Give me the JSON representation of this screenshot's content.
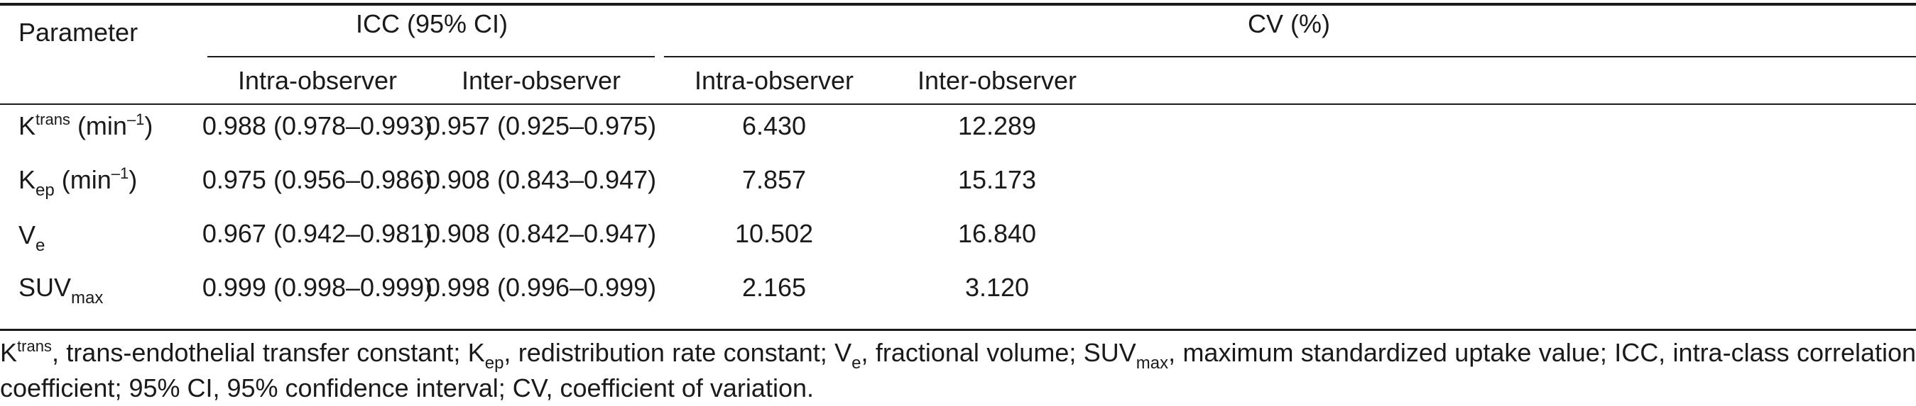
{
  "header": {
    "parameter": "Parameter",
    "icc_group": "ICC (95% CI)",
    "cv_group": "CV (%)",
    "icc_intra": "Intra-observer",
    "icc_inter": "Inter-observer",
    "cv_intra": "Intra-observer",
    "cv_inter": "Inter-observer"
  },
  "rows": [
    {
      "param_main": "K",
      "param_sup": "trans",
      "param_sub": "",
      "param_unit": " (min",
      "param_unit_sup": "–1",
      "param_unit_close": ")",
      "icc_intra": "0.988 (0.978–0.993)",
      "icc_inter": "0.957 (0.925–0.975)",
      "cv_intra": "6.430",
      "cv_inter": "12.289"
    },
    {
      "param_main": "K",
      "param_sup": "",
      "param_sub": "ep",
      "param_unit": " (min",
      "param_unit_sup": "–1",
      "param_unit_close": ")",
      "icc_intra": "0.975 (0.956–0.986)",
      "icc_inter": "0.908 (0.843–0.947)",
      "cv_intra": "7.857",
      "cv_inter": "15.173"
    },
    {
      "param_main": "V",
      "param_sup": "",
      "param_sub": "e",
      "param_unit": "",
      "param_unit_sup": "",
      "param_unit_close": "",
      "icc_intra": "0.967 (0.942–0.981)",
      "icc_inter": "0.908 (0.842–0.947)",
      "cv_intra": "10.502",
      "cv_inter": "16.840"
    },
    {
      "param_main": "SUV",
      "param_sup": "",
      "param_sub": "max",
      "param_unit": "",
      "param_unit_sup": "",
      "param_unit_close": "",
      "icc_intra": "0.999 (0.998–0.999)",
      "icc_inter": "0.998 (0.996–0.999)",
      "cv_intra": "2.165",
      "cv_inter": "3.120"
    }
  ],
  "footnote": {
    "p1": "K",
    "p1_sup": "trans",
    "p2": ", trans-endothelial transfer constant; K",
    "p2_sub": "ep",
    "p3": ", redistribution rate constant; V",
    "p3_sub": "e",
    "p4": ", fractional volume; SUV",
    "p4_sub": "max",
    "p5": ", maximum standardized uptake value; ICC, intra-class correlation coefficient; 95% CI, 95% confidence interval; CV, coefficient of variation."
  }
}
